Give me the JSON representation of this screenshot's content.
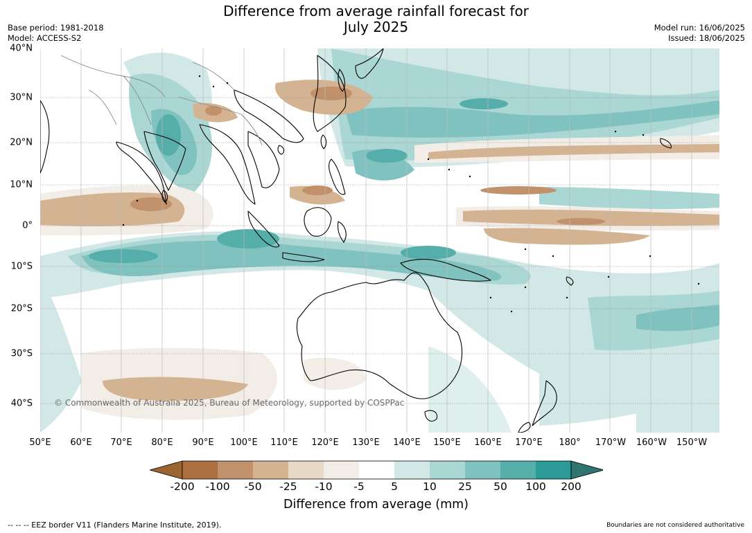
{
  "title": {
    "line1": "Difference from average rainfall forecast for",
    "line2": "July 2025"
  },
  "meta": {
    "base_period": "Base period: 1981-2018",
    "model": "Model: ACCESS-S2",
    "model_run": "Model run: 16/06/2025",
    "issued": "Issued: 18/06/2025"
  },
  "map": {
    "lat_labels": [
      "40°N",
      "30°N",
      "20°N",
      "10°N",
      "0°",
      "10°S",
      "20°S",
      "30°S",
      "40°S"
    ],
    "lon_labels": [
      "50°E",
      "60°E",
      "70°E",
      "80°E",
      "90°E",
      "100°E",
      "110°E",
      "120°E",
      "130°E",
      "140°E",
      "150°E",
      "160°E",
      "170°E",
      "180°",
      "170°W",
      "160°W",
      "150°W"
    ],
    "copyright": "© Commonwealth of Australia 2025, Bureau of Meteorology, supported by COSPPac"
  },
  "colorbar": {
    "ticks": [
      "-200",
      "-100",
      "-50",
      "-25",
      "-10",
      "-5",
      "5",
      "10",
      "25",
      "50",
      "100",
      "200"
    ],
    "colors": [
      "#9c6430",
      "#ad7040",
      "#c0916a",
      "#d4b392",
      "#e8d8c6",
      "#f2ede6",
      "#ffffff",
      "#d2e8e7",
      "#aad6d4",
      "#80c2bf",
      "#56aeaa",
      "#2c9a96",
      "#2f7470"
    ],
    "label": "Difference from average (mm)"
  },
  "footer": {
    "eez": "--  --  -- EEZ border V11 (Flanders Marine Institute, 2019).",
    "disclaimer": "Boundaries are not considered authoritative"
  }
}
